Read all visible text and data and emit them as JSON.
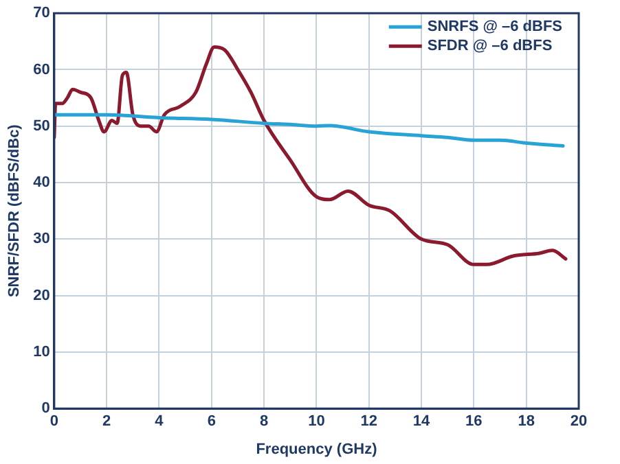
{
  "chart_data": {
    "type": "line",
    "xlabel": "Frequency (GHz)",
    "ylabel": "SNRF/SFDR (dBFS/dBc)",
    "xlim": [
      0,
      20
    ],
    "xticks": [
      0,
      2,
      4,
      6,
      8,
      10,
      12,
      14,
      16,
      18,
      20
    ],
    "ylim": [
      0,
      70
    ],
    "yticks": [
      0,
      10,
      20,
      30,
      40,
      50,
      60,
      70
    ],
    "grid": true,
    "legend": "top right",
    "marker": "none",
    "line_style": "solid",
    "series": [
      {
        "name": "SNRFS @ –6 dBFS",
        "color": "#29a3d6",
        "x": [
          0,
          2,
          4,
          6,
          8,
          9,
          10,
          10.5,
          12,
          14,
          15,
          16,
          17,
          18,
          19.4
        ],
        "values": [
          52,
          52,
          51.5,
          51.2,
          50.5,
          50.3,
          50,
          50.1,
          49,
          48.3,
          48,
          47.5,
          47.5,
          47,
          46.5
        ]
      },
      {
        "name": "SFDR @ –6 dBFS",
        "color": "#8b1a2e",
        "x": [
          0,
          0.05,
          0.3,
          0.5,
          0.7,
          1.0,
          1.4,
          1.7,
          1.9,
          2.2,
          2.4,
          2.6,
          2.75,
          3.0,
          3.3,
          3.6,
          3.9,
          4.2,
          4.8,
          5.4,
          5.8,
          6.1,
          6.5,
          7.0,
          7.5,
          8.0,
          9.0,
          10.0,
          10.5,
          11.2,
          12,
          12.8,
          14,
          15,
          16,
          16.5,
          17.5,
          18.5,
          19,
          19.5
        ],
        "values": [
          48,
          54,
          54,
          55,
          56.5,
          56,
          55,
          51,
          49,
          51,
          50.5,
          59,
          59.5,
          52,
          50,
          50,
          49,
          52,
          53.5,
          56,
          61,
          64,
          63.5,
          60,
          56,
          51,
          44,
          37.5,
          37,
          38.5,
          36,
          35,
          30,
          29,
          25.5,
          25.5,
          27,
          27.5,
          28,
          26.5
        ]
      }
    ]
  }
}
